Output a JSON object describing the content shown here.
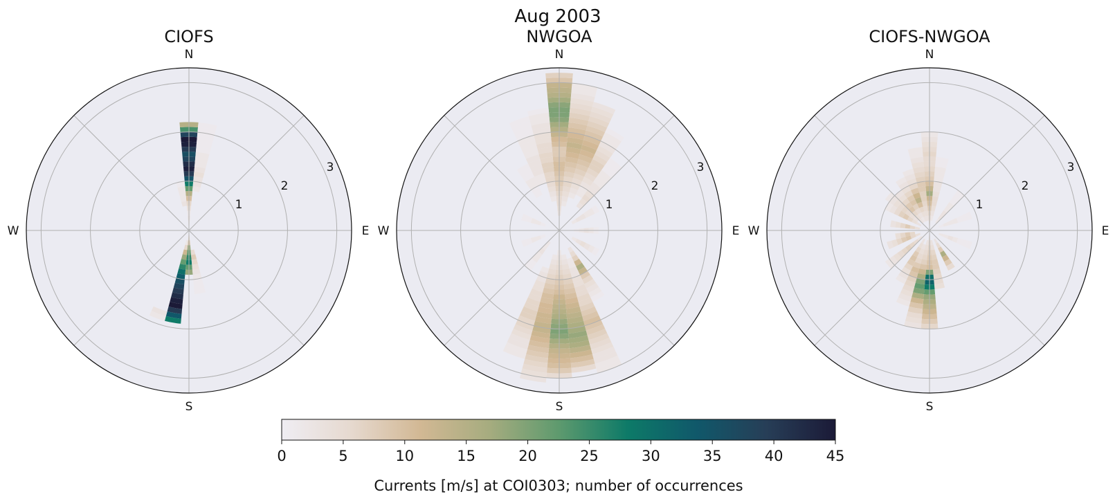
{
  "figure": {
    "suptitle": "Aug 2003",
    "colorbar": {
      "label": "Currents [m/s] at COI0303; number of occurrences",
      "min": 0,
      "max": 45,
      "ticks": [
        "0",
        "5",
        "10",
        "15",
        "20",
        "25",
        "30",
        "35",
        "40",
        "45"
      ],
      "colormap": [
        "#efedf3",
        "#e6d9cf",
        "#d2b894",
        "#a6ac7f",
        "#5e9a6e",
        "#0d7a68",
        "#10586a",
        "#273e57",
        "#1b1a37"
      ]
    }
  },
  "chart_data": [
    {
      "type": "heatmap",
      "subtype": "polar-rose",
      "title": "CIOFS",
      "directions": [
        "N",
        "E",
        "S",
        "W"
      ],
      "radial_ticks": [
        "1",
        "2",
        "3"
      ],
      "rlim": [
        0,
        3.3
      ],
      "bin_width_deg": 10,
      "speed_step": 0.1,
      "background": "#ebebf2",
      "grid": true,
      "bins": [
        {
          "dir": 0,
          "r0": 0.0,
          "r1": 0.3,
          "counts": [
            1,
            2,
            3
          ]
        },
        {
          "dir": 0,
          "r0": 0.3,
          "r1": 2.2,
          "counts": [
            2,
            4,
            6,
            10,
            15,
            22,
            28,
            35,
            40,
            44,
            42,
            38,
            36,
            40,
            44,
            45,
            38,
            24,
            15
          ]
        },
        {
          "dir": 10,
          "r0": 0.8,
          "r1": 2.2,
          "counts": [
            2,
            3,
            3,
            4,
            3,
            2,
            2,
            2,
            1,
            1,
            1,
            1,
            1,
            1
          ]
        },
        {
          "dir": 350,
          "r0": 0.5,
          "r1": 1.0,
          "counts": [
            3,
            2,
            2,
            2,
            1
          ]
        },
        {
          "dir": 180,
          "r0": 0.0,
          "r1": 0.9,
          "counts": [
            4,
            6,
            10,
            18,
            22,
            26,
            28,
            22,
            18
          ]
        },
        {
          "dir": 190,
          "r0": 0.2,
          "r1": 1.9,
          "counts": [
            2,
            6,
            12,
            18,
            22,
            26,
            30,
            33,
            36,
            38,
            40,
            42,
            44,
            45,
            40,
            34,
            28
          ]
        },
        {
          "dir": 170,
          "r0": 0.4,
          "r1": 1.3,
          "counts": [
            5,
            8,
            6,
            4,
            3,
            2,
            1,
            1,
            1
          ]
        },
        {
          "dir": 200,
          "r0": 1.7,
          "r1": 1.9,
          "counts": [
            3,
            2
          ]
        }
      ]
    },
    {
      "type": "heatmap",
      "subtype": "polar-rose",
      "title": "NWGOA",
      "directions": [
        "N",
        "E",
        "S",
        "W"
      ],
      "radial_ticks": [
        "1",
        "2",
        "3"
      ],
      "rlim": [
        0,
        3.3
      ],
      "bin_width_deg": 10,
      "speed_step": 0.1,
      "background": "#ebebf2",
      "grid": true,
      "bins": [
        {
          "dir": 0,
          "r0": 0.3,
          "r1": 3.2,
          "counts": [
            3,
            4,
            5,
            5,
            6,
            7,
            8,
            8,
            9,
            10,
            10,
            9,
            8,
            8,
            10,
            11,
            13,
            15,
            17,
            19,
            20,
            20,
            19,
            17,
            15,
            14,
            13,
            9,
            7
          ]
        },
        {
          "dir": 10,
          "r0": 0.5,
          "r1": 3.0,
          "counts": [
            2,
            3,
            4,
            5,
            6,
            6,
            7,
            8,
            9,
            10,
            11,
            12,
            13,
            12,
            11,
            10,
            9,
            8,
            7,
            6,
            5,
            4,
            3,
            2,
            2
          ]
        },
        {
          "dir": 20,
          "r0": 0.7,
          "r1": 2.7,
          "counts": [
            2,
            3,
            4,
            5,
            6,
            7,
            8,
            9,
            10,
            11,
            12,
            11,
            10,
            9,
            8,
            7,
            6,
            5,
            4,
            3
          ]
        },
        {
          "dir": 30,
          "r0": 0.8,
          "r1": 2.3,
          "counts": [
            2,
            2,
            3,
            4,
            5,
            6,
            7,
            7,
            6,
            5,
            4,
            3,
            2,
            2,
            1
          ]
        },
        {
          "dir": 40,
          "r0": 0.6,
          "r1": 1.8,
          "counts": [
            3,
            4,
            5,
            4,
            3,
            3,
            2,
            2,
            2,
            1,
            1,
            1
          ]
        },
        {
          "dir": 350,
          "r0": 0.6,
          "r1": 2.5,
          "counts": [
            2,
            3,
            4,
            5,
            6,
            6,
            7,
            7,
            6,
            6,
            5,
            5,
            4,
            4,
            3,
            3,
            2,
            2,
            1
          ]
        },
        {
          "dir": 340,
          "r0": 1.0,
          "r1": 2.4,
          "counts": [
            2,
            2,
            3,
            3,
            3,
            3,
            2,
            2,
            2,
            2,
            1,
            1,
            1,
            1
          ]
        },
        {
          "dir": 330,
          "r0": 0.8,
          "r1": 1.5,
          "counts": [
            1,
            1,
            2,
            2,
            1,
            1,
            1
          ]
        },
        {
          "dir": 60,
          "r0": 0.3,
          "r1": 0.9,
          "counts": [
            2,
            3,
            3,
            2,
            2,
            1
          ]
        },
        {
          "dir": 90,
          "r0": 0.3,
          "r1": 0.8,
          "counts": [
            1,
            2,
            3,
            2,
            1
          ]
        },
        {
          "dir": 120,
          "r0": 0.3,
          "r1": 0.9,
          "counts": [
            2,
            3,
            4,
            3,
            2,
            1
          ]
        },
        {
          "dir": 150,
          "r0": 0.4,
          "r1": 1.6,
          "counts": [
            3,
            5,
            7,
            12,
            16,
            13,
            8,
            6,
            4,
            3,
            2,
            1
          ]
        },
        {
          "dir": 170,
          "r0": 0.5,
          "r1": 2.9,
          "counts": [
            2,
            3,
            4,
            5,
            6,
            7,
            8,
            9,
            10,
            11,
            12,
            13,
            14,
            15,
            16,
            17,
            18,
            17,
            16,
            14,
            12,
            10,
            8,
            5
          ]
        },
        {
          "dir": 180,
          "r0": 0.4,
          "r1": 3.0,
          "counts": [
            2,
            3,
            4,
            5,
            6,
            7,
            8,
            9,
            10,
            12,
            13,
            14,
            15,
            16,
            18,
            19,
            20,
            19,
            17,
            15,
            13,
            12,
            11,
            10,
            8,
            5
          ]
        },
        {
          "dir": 190,
          "r0": 0.5,
          "r1": 3.1,
          "counts": [
            2,
            3,
            4,
            5,
            6,
            7,
            8,
            9,
            10,
            10,
            11,
            11,
            12,
            12,
            13,
            13,
            12,
            11,
            10,
            9,
            8,
            7,
            6,
            5,
            4,
            3
          ]
        },
        {
          "dir": 200,
          "r0": 0.8,
          "r1": 2.7,
          "counts": [
            2,
            3,
            3,
            4,
            4,
            5,
            5,
            6,
            6,
            7,
            7,
            6,
            6,
            5,
            4,
            3,
            3,
            2,
            2
          ]
        },
        {
          "dir": 160,
          "r0": 0.6,
          "r1": 3.0,
          "counts": [
            2,
            2,
            3,
            3,
            4,
            4,
            5,
            5,
            6,
            6,
            7,
            8,
            9,
            10,
            9,
            8,
            7,
            6,
            5,
            4,
            3,
            3,
            2,
            2
          ]
        },
        {
          "dir": 220,
          "r0": 0.3,
          "r1": 1.0,
          "counts": [
            2,
            2,
            3,
            2,
            2,
            1,
            1
          ]
        },
        {
          "dir": 250,
          "r0": 0.3,
          "r1": 0.8,
          "counts": [
            1,
            2,
            2,
            1,
            1
          ]
        },
        {
          "dir": 290,
          "r0": 0.3,
          "r1": 0.8,
          "counts": [
            1,
            2,
            2,
            1,
            1
          ]
        }
      ]
    },
    {
      "type": "heatmap",
      "subtype": "polar-rose",
      "title": "CIOFS-NWGOA",
      "directions": [
        "N",
        "E",
        "S",
        "W"
      ],
      "radial_ticks": [
        "1",
        "2",
        "3"
      ],
      "rlim": [
        0,
        3.3
      ],
      "bin_width_deg": 10,
      "speed_step": 0.1,
      "background": "#ebebf2",
      "grid": true,
      "bins": [
        {
          "dir": 0,
          "r0": 0.0,
          "r1": 2.0,
          "counts": [
            3,
            4,
            5,
            6,
            8,
            10,
            12,
            17,
            13,
            10,
            8,
            7,
            6,
            5,
            5,
            6,
            5,
            4,
            3,
            2
          ]
        },
        {
          "dir": 10,
          "r0": 0.2,
          "r1": 1.5,
          "counts": [
            2,
            3,
            4,
            5,
            5,
            4,
            3,
            3,
            2,
            2,
            2,
            1,
            1
          ]
        },
        {
          "dir": 350,
          "r0": 0.2,
          "r1": 1.7,
          "counts": [
            3,
            4,
            5,
            6,
            7,
            7,
            8,
            8,
            7,
            6,
            5,
            4,
            3,
            2,
            2
          ]
        },
        {
          "dir": 340,
          "r0": 0.2,
          "r1": 1.3,
          "counts": [
            3,
            4,
            6,
            10,
            14,
            12,
            9,
            6,
            4,
            3,
            2
          ]
        },
        {
          "dir": 330,
          "r0": 0.2,
          "r1": 1.2,
          "counts": [
            2,
            3,
            5,
            7,
            9,
            8,
            6,
            4,
            3,
            2
          ]
        },
        {
          "dir": 40,
          "r0": 0.2,
          "r1": 1.0,
          "counts": [
            2,
            3,
            3,
            2,
            2,
            1,
            1,
            1
          ]
        },
        {
          "dir": 70,
          "r0": 0.2,
          "r1": 0.9,
          "counts": [
            1,
            2,
            2,
            2,
            1,
            1,
            1
          ]
        },
        {
          "dir": 110,
          "r0": 0.2,
          "r1": 0.9,
          "counts": [
            2,
            2,
            3,
            2,
            1,
            1,
            1
          ]
        },
        {
          "dir": 150,
          "r0": 0.2,
          "r1": 0.9,
          "counts": [
            3,
            5,
            8,
            16,
            12,
            8,
            5
          ]
        },
        {
          "dir": 170,
          "r0": 0.2,
          "r1": 1.2,
          "counts": [
            3,
            4,
            6,
            7,
            8,
            8,
            7,
            6,
            5,
            4
          ]
        },
        {
          "dir": 180,
          "r0": 0.0,
          "r1": 2.0,
          "counts": [
            3,
            4,
            5,
            6,
            7,
            8,
            9,
            10,
            20,
            30,
            32,
            28,
            22,
            18,
            16,
            14,
            12,
            10,
            8,
            6
          ]
        },
        {
          "dir": 190,
          "r0": 0.2,
          "r1": 2.0,
          "counts": [
            3,
            4,
            5,
            6,
            7,
            9,
            12,
            16,
            20,
            22,
            20,
            16,
            12,
            9,
            7,
            5,
            4,
            3
          ]
        },
        {
          "dir": 200,
          "r0": 0.3,
          "r1": 1.6,
          "counts": [
            3,
            4,
            5,
            6,
            8,
            10,
            9,
            7,
            6,
            5,
            4,
            3,
            2
          ]
        },
        {
          "dir": 210,
          "r0": 0.2,
          "r1": 1.2,
          "counts": [
            3,
            4,
            6,
            8,
            9,
            8,
            6,
            4,
            3,
            2
          ]
        },
        {
          "dir": 230,
          "r0": 0.2,
          "r1": 1.1,
          "counts": [
            3,
            5,
            6,
            7,
            6,
            5,
            4,
            3,
            2
          ]
        },
        {
          "dir": 250,
          "r0": 0.2,
          "r1": 0.9,
          "counts": [
            4,
            6,
            9,
            8,
            6,
            4,
            3
          ]
        },
        {
          "dir": 260,
          "r0": 0.3,
          "r1": 0.7,
          "counts": [
            6,
            8,
            6,
            4
          ]
        },
        {
          "dir": 280,
          "r0": 0.2,
          "r1": 0.8,
          "counts": [
            4,
            6,
            8,
            6,
            4,
            3
          ]
        },
        {
          "dir": 300,
          "r0": 0.2,
          "r1": 1.0,
          "counts": [
            3,
            4,
            6,
            8,
            7,
            5,
            3,
            2
          ]
        },
        {
          "dir": 310,
          "r0": 0.3,
          "r1": 1.1,
          "counts": [
            3,
            4,
            5,
            6,
            5,
            4,
            3,
            2
          ]
        },
        {
          "dir": 320,
          "r0": 0.2,
          "r1": 1.0,
          "counts": [
            3,
            4,
            6,
            9,
            8,
            6,
            4,
            3
          ]
        }
      ]
    }
  ]
}
